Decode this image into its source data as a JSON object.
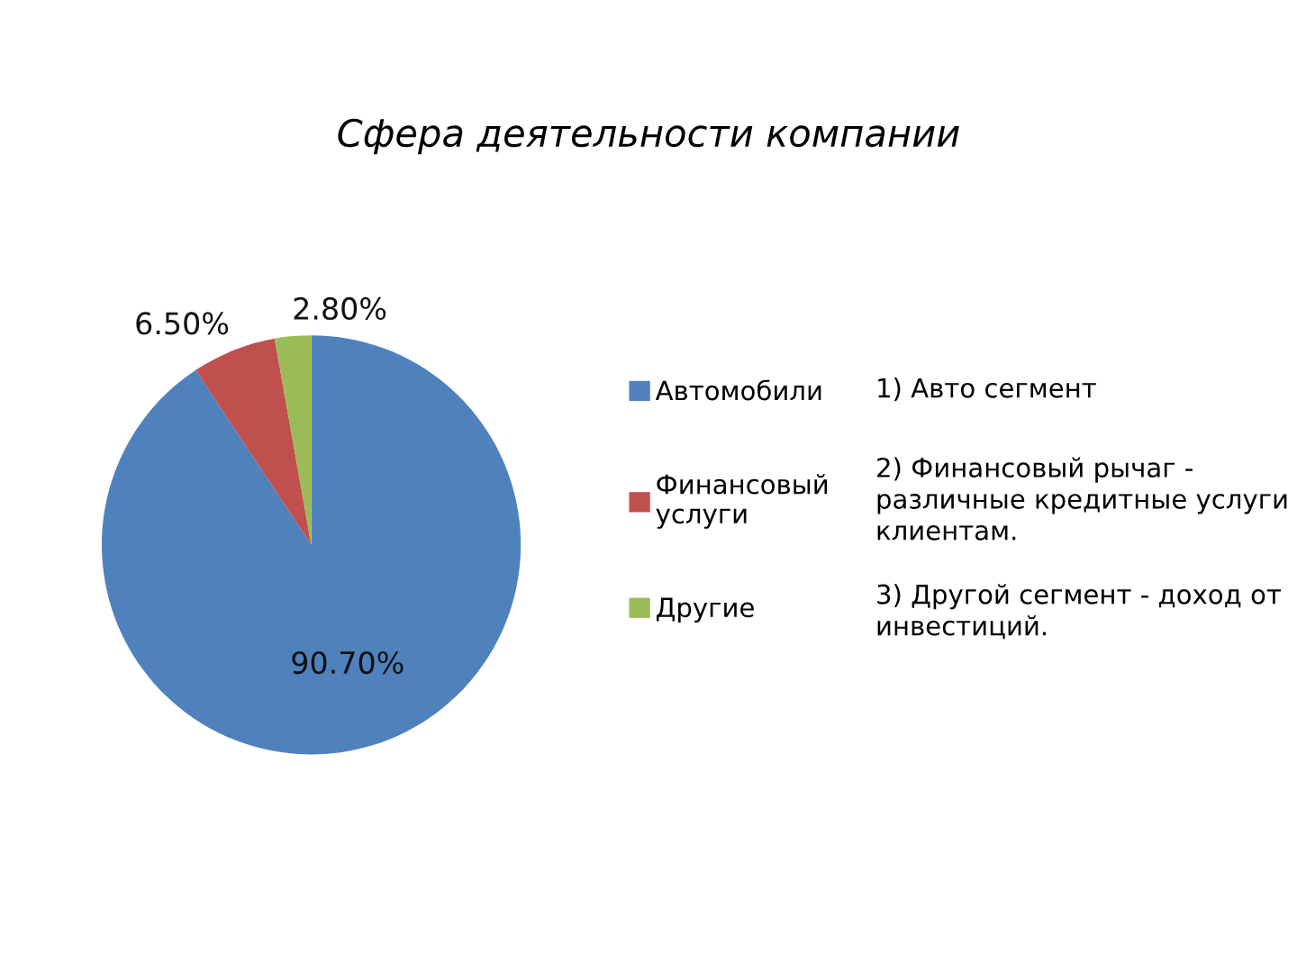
{
  "chart_data": {
    "type": "pie",
    "title": "Сфера деятельности компании",
    "categories": [
      "Автомобили",
      "Финансовый услуги",
      "Другие"
    ],
    "values": [
      90.7,
      6.5,
      2.8
    ],
    "colors": [
      "#4f81bd",
      "#c0504d",
      "#9bbb59"
    ],
    "value_labels": [
      "90.70%",
      "6.50%",
      "2.80%"
    ],
    "legend": "right",
    "annotations": [
      "1) Авто сегмент",
      "2) Финансовый рычаг - различные кредитные услуги клиентам.",
      "3) Другой сегмент - доход от инвестиций."
    ]
  }
}
